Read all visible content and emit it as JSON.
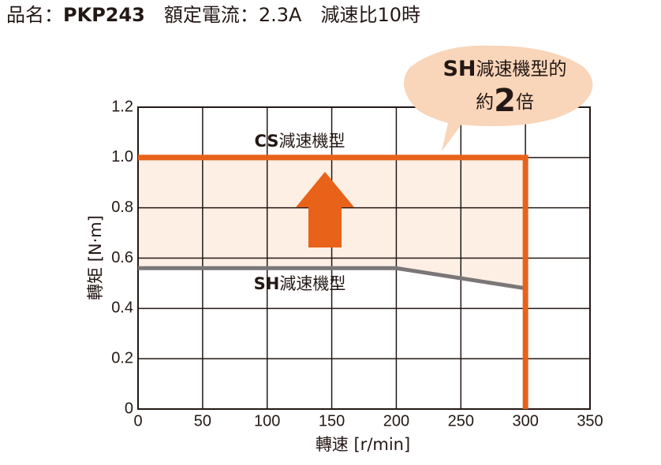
{
  "header": {
    "parts": [
      "品名：",
      "PKP243",
      "　額定電流：2.3A　減速比10時"
    ]
  },
  "chart_data": {
    "type": "line",
    "xlabel": "轉速 [r/min]",
    "ylabel": "轉矩 [N·m]",
    "xlim": [
      0,
      350
    ],
    "ylim": [
      0,
      1.2
    ],
    "xticks": [
      0,
      50,
      100,
      150,
      200,
      250,
      300,
      350
    ],
    "yticks": [
      0,
      0.2,
      0.4,
      0.6,
      0.8,
      {
        "value": 1,
        "label": "1.0"
      },
      1.2
    ],
    "grid": true,
    "series": [
      {
        "name": "CS減速機型",
        "color": "#e8621a",
        "x": [
          0,
          300,
          300
        ],
        "values": [
          1,
          1,
          0
        ]
      },
      {
        "name": "SH減速機型",
        "color": "#7b7677",
        "x": [
          0,
          200,
          300
        ],
        "values": [
          0.56,
          0.56,
          0.48
        ]
      }
    ],
    "fill_color": "#fdefe4",
    "annotations": {
      "cs_label": [
        "CS",
        "減速機型"
      ],
      "sh_label": [
        "SH",
        "減速機型"
      ],
      "bubble": [
        "SH",
        "減速機型的",
        "約",
        "2",
        "倍"
      ]
    }
  }
}
